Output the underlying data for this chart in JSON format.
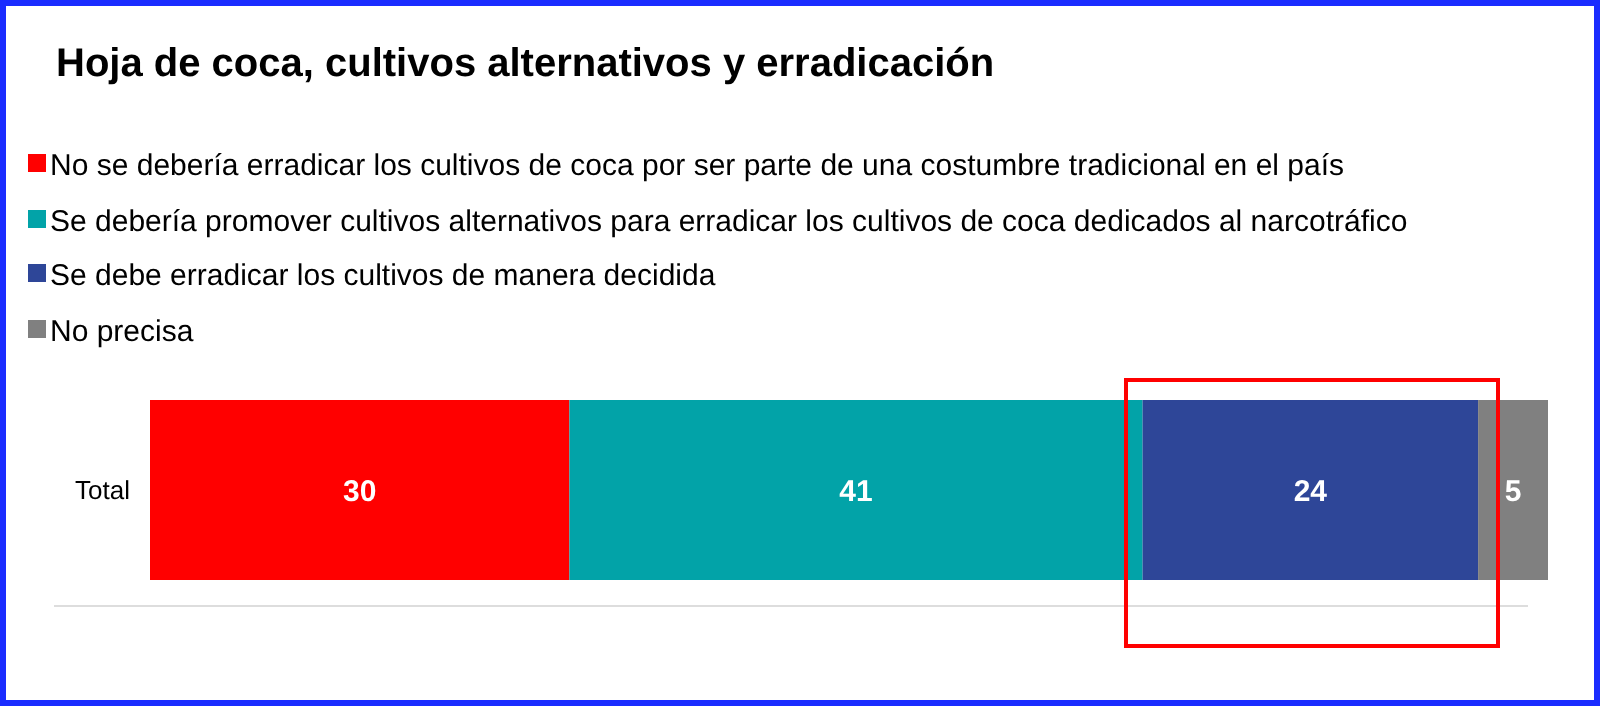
{
  "chart_data": {
    "type": "bar",
    "orientation": "horizontal",
    "stacked": true,
    "title": "Hoja de coca, cultivos alternativos y erradicación",
    "categories": [
      "Total"
    ],
    "series": [
      {
        "name": "No se debería erradicar los cultivos de coca por ser parte de una costumbre tradicional en el país",
        "color": "#ff0000",
        "values": [
          30
        ]
      },
      {
        "name": "Se debería promover cultivos alternativos para erradicar los cultivos de coca dedicados al narcotráfico",
        "color": "#02a3a8",
        "values": [
          41
        ]
      },
      {
        "name": "Se debe erradicar los cultivos de manera decidida",
        "color": "#2e4698",
        "values": [
          24
        ]
      },
      {
        "name": "No precisa",
        "color": "#808080",
        "values": [
          5
        ]
      }
    ],
    "data_labels": true,
    "legend": "top left"
  }
}
